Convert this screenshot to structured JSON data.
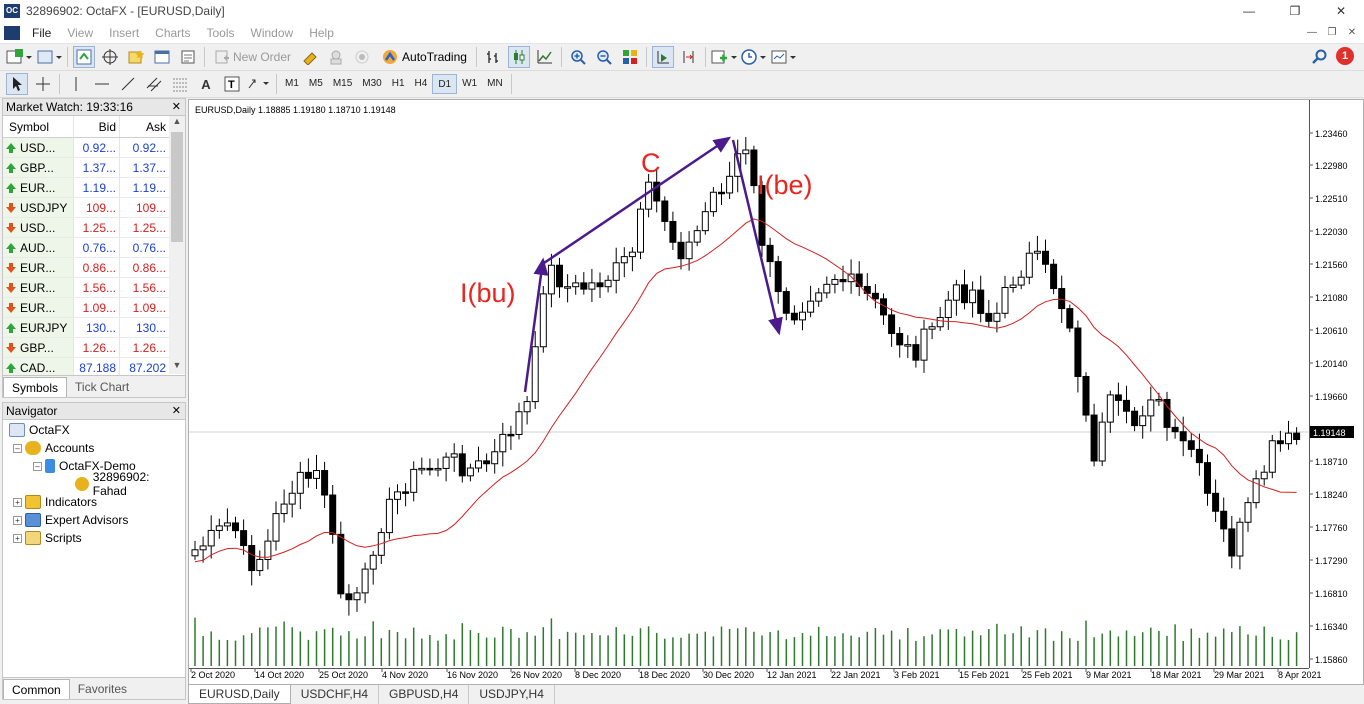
{
  "window": {
    "title": "32896902: OctaFX - [EURUSD,Daily]",
    "app_icon": "OC"
  },
  "menu": [
    "File",
    "View",
    "Insert",
    "Charts",
    "Tools",
    "Window",
    "Help"
  ],
  "toolbar": {
    "new_order": "New Order",
    "auto_trading": "AutoTrading"
  },
  "timeframes": [
    "M1",
    "M5",
    "M15",
    "M30",
    "H1",
    "H4",
    "D1",
    "W1",
    "MN"
  ],
  "active_timeframe": "D1",
  "notifications": "1",
  "market_watch": {
    "title": "Market Watch: 19:33:16",
    "columns": [
      "Symbol",
      "Bid",
      "Ask"
    ],
    "rows": [
      {
        "symbol": "USD...",
        "bid": "0.92...",
        "ask": "0.92...",
        "dir": "up",
        "color": "blue"
      },
      {
        "symbol": "GBP...",
        "bid": "1.37...",
        "ask": "1.37...",
        "dir": "up",
        "color": "blue"
      },
      {
        "symbol": "EUR...",
        "bid": "1.19...",
        "ask": "1.19...",
        "dir": "up",
        "color": "blue"
      },
      {
        "symbol": "USDJPY",
        "bid": "109...",
        "ask": "109...",
        "dir": "down",
        "color": "red"
      },
      {
        "symbol": "USD...",
        "bid": "1.25...",
        "ask": "1.25...",
        "dir": "down",
        "color": "red"
      },
      {
        "symbol": "AUD...",
        "bid": "0.76...",
        "ask": "0.76...",
        "dir": "up",
        "color": "blue"
      },
      {
        "symbol": "EUR...",
        "bid": "0.86...",
        "ask": "0.86...",
        "dir": "down",
        "color": "red"
      },
      {
        "symbol": "EUR...",
        "bid": "1.56...",
        "ask": "1.56...",
        "dir": "down",
        "color": "red"
      },
      {
        "symbol": "EUR...",
        "bid": "1.09...",
        "ask": "1.09...",
        "dir": "down",
        "color": "red"
      },
      {
        "symbol": "EURJPY",
        "bid": "130...",
        "ask": "130...",
        "dir": "up",
        "color": "blue"
      },
      {
        "symbol": "GBP...",
        "bid": "1.26...",
        "ask": "1.26...",
        "dir": "down",
        "color": "red"
      },
      {
        "symbol": "CAD...",
        "bid": "87.188",
        "ask": "87.202",
        "dir": "up",
        "color": "blue"
      }
    ],
    "tabs": [
      "Symbols",
      "Tick Chart"
    ]
  },
  "navigator": {
    "title": "Navigator",
    "items": {
      "root": "OctaFX",
      "accounts": "Accounts",
      "demo": "OctaFX-Demo",
      "account": "32896902: Fahad",
      "indicators": "Indicators",
      "experts": "Expert Advisors",
      "scripts": "Scripts"
    },
    "tabs": [
      "Common",
      "Favorites"
    ]
  },
  "chart": {
    "header": "EURUSD,Daily  1.18885 1.19180 1.18710 1.19148",
    "price_labels": [
      "1.23460",
      "1.22980",
      "1.22510",
      "1.22030",
      "1.21560",
      "1.21080",
      "1.20610",
      "1.20140",
      "1.19660",
      "1.19148",
      "1.18710",
      "1.18240",
      "1.17760",
      "1.17290",
      "1.16810",
      "1.16340",
      "1.15860"
    ],
    "current_price": "1.19148",
    "date_labels": [
      "2 Oct 2020",
      "14 Oct 2020",
      "25 Oct 2020",
      "4 Nov 2020",
      "16 Nov 2020",
      "26 Nov 2020",
      "8 Dec 2020",
      "18 Dec 2020",
      "30 Dec 2020",
      "12 Jan 2021",
      "22 Jan 2021",
      "3 Feb 2021",
      "15 Feb 2021",
      "25 Feb 2021",
      "9 Mar 2021",
      "18 Mar 2021",
      "29 Mar 2021",
      "8 Apr 2021"
    ],
    "annotations": [
      "I(bu)",
      "C",
      "I(be)"
    ],
    "colors": {
      "bull": "#ffffff",
      "bear": "#000000",
      "ma": "#d42020",
      "volume": "#2d7a2d",
      "arrow": "#4b1a8c",
      "annotation": "#e8251f"
    }
  },
  "chart_tabs": [
    "EURUSD,Daily",
    "USDCHF,H4",
    "GBPUSD,H4",
    "USDJPY,H4"
  ]
}
